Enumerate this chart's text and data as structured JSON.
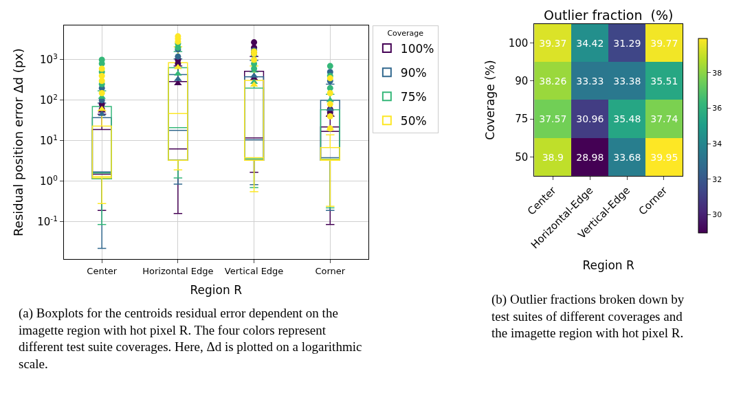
{
  "chart_data": [
    {
      "type": "box",
      "xlabel": "Region R",
      "ylabel": "Residual position error Δd (px)",
      "legend_title": "Coverage",
      "legend": "top right",
      "log": true,
      "grid": true,
      "marker": "circle",
      "categories": [
        "Center",
        "Horizontal Edge",
        "Vertical Edge",
        "Corner"
      ],
      "ylim": [
        0.012,
        7000
      ],
      "yticks": [
        {
          "value": 0.1,
          "label": "10$^{-1}$"
        },
        {
          "value": 1,
          "label": "10$^{0}$"
        },
        {
          "value": 10,
          "label": "10$^{1}$"
        },
        {
          "value": 100,
          "label": "10$^{2}$"
        },
        {
          "value": 1000,
          "label": "10$^{3}$"
        }
      ],
      "series": [
        {
          "name": "100%",
          "color": "#440154",
          "boxes": [
            {
              "low": 0.19,
              "q1": 1.15,
              "median": 1.5,
              "q3": 19,
              "high": 45,
              "mean": 55,
              "outliers": [
                60,
                80
              ]
            },
            {
              "low": 0.16,
              "q1": 3.3,
              "median": 6.3,
              "q3": 290,
              "high": 700,
              "mean": 260,
              "outliers": [
                800,
                1000
              ]
            },
            {
              "low": 1.66,
              "q1": 3.3,
              "median": 11.7,
              "q3": 520,
              "high": 1200,
              "mean": 350,
              "outliers": [
                1500,
                2000,
                2700
              ]
            },
            {
              "low": 0.085,
              "q1": 3.3,
              "median": 17,
              "q3": 22,
              "high": 40,
              "mean": 45,
              "outliers": [
                50,
                60
              ]
            }
          ]
        },
        {
          "name": "90%",
          "color": "#31688e",
          "boxes": [
            {
              "low": 0.022,
              "q1": 1.15,
              "median": 1.7,
              "q3": 37,
              "high": 85,
              "mean": 45,
              "outliers": [
                100,
                200
              ]
            },
            {
              "low": 0.85,
              "q1": 3.3,
              "median": 18,
              "q3": 430,
              "high": 1050,
              "mean": 330,
              "outliers": [
                1200,
                1800
              ]
            },
            {
              "low": 0.82,
              "q1": 3.3,
              "median": 10.5,
              "q3": 380,
              "high": 960,
              "mean": 400,
              "outliers": [
                1300,
                1700
              ]
            },
            {
              "low": 0.19,
              "q1": 3.3,
              "median": 3.8,
              "q3": 100,
              "high": 250,
              "mean": 60,
              "outliers": [
                300,
                500
              ]
            }
          ]
        },
        {
          "name": "75%",
          "color": "#35b779",
          "boxes": [
            {
              "low": 0.085,
              "q1": 1.15,
              "median": 1.6,
              "q3": 70,
              "high": 170,
              "mean": 120,
              "outliers": [
                250,
                500,
                800,
                1000
              ]
            },
            {
              "low": 1.2,
              "q1": 3.3,
              "median": 21,
              "q3": 640,
              "high": 1600,
              "mean": 450,
              "outliers": [
                2000,
                2500
              ]
            },
            {
              "low": 0.7,
              "q1": 3.3,
              "median": 3.6,
              "q3": 200,
              "high": 500,
              "mean": 280,
              "outliers": [
                600,
                800
              ]
            },
            {
              "low": 0.22,
              "q1": 3.3,
              "median": 3.5,
              "q3": 58,
              "high": 140,
              "mean": 100,
              "outliers": [
                200,
                400,
                700
              ]
            }
          ]
        },
        {
          "name": "50%",
          "color": "#fde725",
          "boxes": [
            {
              "low": 0.28,
              "q1": 1.2,
              "median": 1.3,
              "q3": 23,
              "high": 55,
              "mean": 60,
              "outliers": [
                150,
                300,
                400,
                600
              ]
            },
            {
              "low": 1.9,
              "q1": 3.3,
              "median": 47,
              "q3": 850,
              "high": 2100,
              "mean": 650,
              "outliers": [
                2800,
                3300,
                3800
              ]
            },
            {
              "low": 0.55,
              "q1": 3.3,
              "median": 3.8,
              "q3": 310,
              "high": 700,
              "mean": 240,
              "outliers": [
                1000,
                1400,
                1600
              ]
            },
            {
              "low": 0.24,
              "q1": 3.3,
              "median": 3.4,
              "q3": 6.8,
              "high": 14,
              "mean": 20,
              "outliers": [
                20,
                40,
                80,
                150,
                350
              ]
            }
          ]
        }
      ],
      "annotations": [
        "(a) Boxplots for the centroids residual error dependent on the imagette region with hot pixel R. The four colors represent different test suite coverages. Here, Δd is plotted on a logarithmic scale."
      ]
    },
    {
      "type": "heatmap",
      "title": "Outlier fraction  (%)",
      "xlabel": "Region R",
      "ylabel": "Coverage (%)",
      "data_labels": true,
      "categories": [
        "Center",
        "Horizontal-Edge",
        "Vertical-Edge",
        "Corner"
      ],
      "y_categories": [
        "100",
        "90",
        "75",
        "50"
      ],
      "cells": [
        [
          39.37,
          34.42,
          31.29,
          39.77
        ],
        [
          38.26,
          33.33,
          33.38,
          35.51
        ],
        [
          37.57,
          30.96,
          35.48,
          37.74
        ],
        [
          38.9,
          28.98,
          33.68,
          39.95
        ]
      ],
      "clim": [
        28.98,
        39.95
      ],
      "cticks": [
        30,
        32,
        34,
        36,
        38
      ],
      "annotations": [
        "(b) Outlier fractions broken down by test suites of different coverages and the imagette region with hot pixel R."
      ]
    }
  ]
}
